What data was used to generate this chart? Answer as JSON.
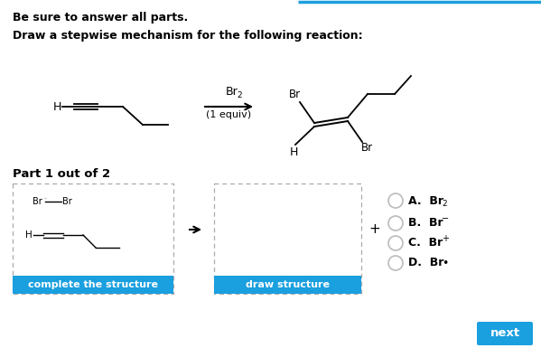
{
  "bg_color": "#ffffff",
  "title_line1": "Be sure to answer all parts.",
  "title_line2": "Draw a stepwise mechanism for the following reaction:",
  "reagent_text": "Br",
  "reagent_sub": "2",
  "equiv_text": "(1 equiv)",
  "part_text": "Part 1 out of 2",
  "btn1_text": "complete the structure",
  "btn2_text": "draw structure",
  "btn_color": "#1a9fdf",
  "btn_text_color": "#ffffff",
  "plus_text": "+",
  "arrow_color": "#000000",
  "next_btn_text": "next",
  "next_btn_color": "#1a9fdf",
  "dashed_border_color": "#aaaaaa",
  "body_text_color": "#000000",
  "top_border_color": "#1a9fdf",
  "choice_circle_color": "#bbbbbb"
}
